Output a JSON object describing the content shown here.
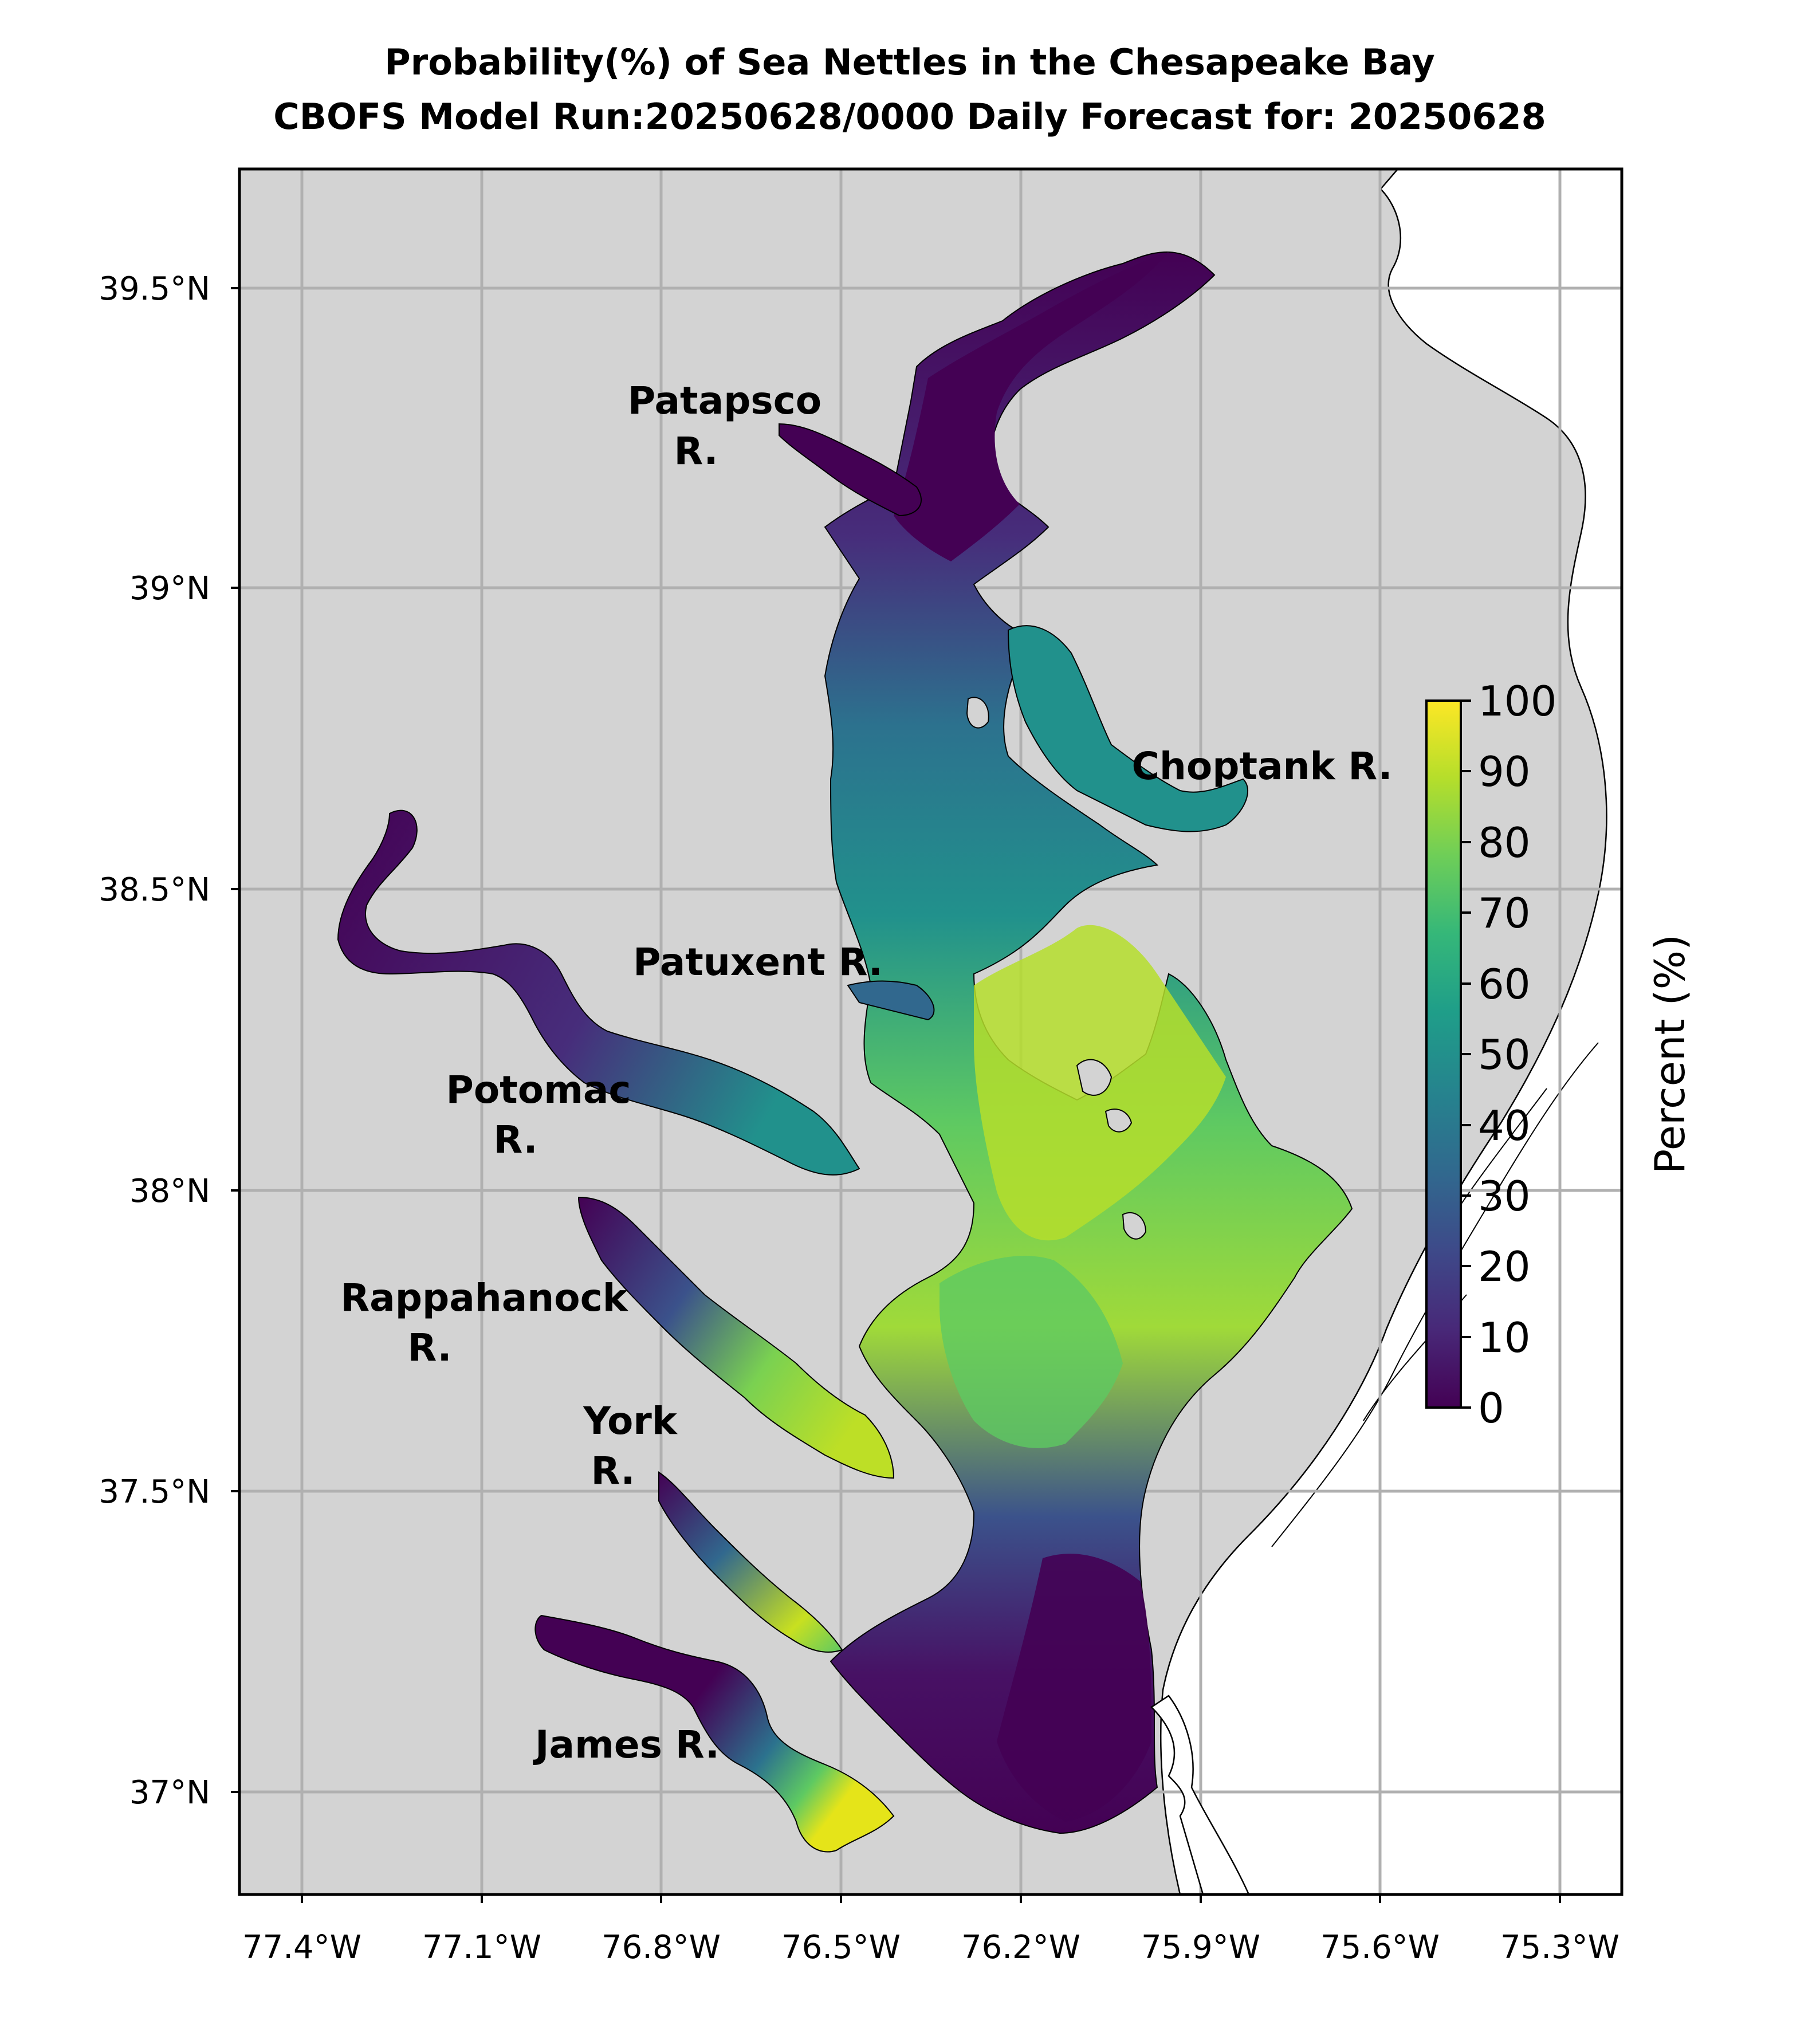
{
  "title": {
    "line1": "Probability(%) of Sea Nettles in the Chesapeake Bay",
    "line2": "CBOFS Model Run:20250628/0000 Daily Forecast for: 20250628"
  },
  "axes": {
    "x_ticks": [
      "77.4°W",
      "77.1°W",
      "76.8°W",
      "76.5°W",
      "76.2°W",
      "75.9°W",
      "75.6°W",
      "75.3°W"
    ],
    "y_ticks": [
      "39.5°N",
      "39°N",
      "38.5°N",
      "38°N",
      "37.5°N",
      "37°N"
    ],
    "grid": true
  },
  "river_labels": [
    {
      "lines": [
        "Patapsco",
        "R."
      ]
    },
    {
      "lines": [
        "Choptank R."
      ]
    },
    {
      "lines": [
        "Patuxent R."
      ]
    },
    {
      "lines": [
        "Potomac",
        "R."
      ]
    },
    {
      "lines": [
        "Rappahanock",
        "R."
      ]
    },
    {
      "lines": [
        "York",
        "R."
      ]
    },
    {
      "lines": [
        "James R."
      ]
    }
  ],
  "colorbar": {
    "title": "Percent (%)",
    "min": 0,
    "max": 100,
    "ticks": [
      "0",
      "10",
      "20",
      "30",
      "40",
      "50",
      "60",
      "70",
      "80",
      "90",
      "100"
    ],
    "colormap": [
      "#440154",
      "#482878",
      "#3e4989",
      "#31688e",
      "#26828e",
      "#1f9e89",
      "#35b779",
      "#6ece58",
      "#b5de2b",
      "#fde725"
    ]
  },
  "colors": {
    "land": "#d3d3d3",
    "ocean": "#ffffff",
    "grid": "#b0b0b0"
  }
}
